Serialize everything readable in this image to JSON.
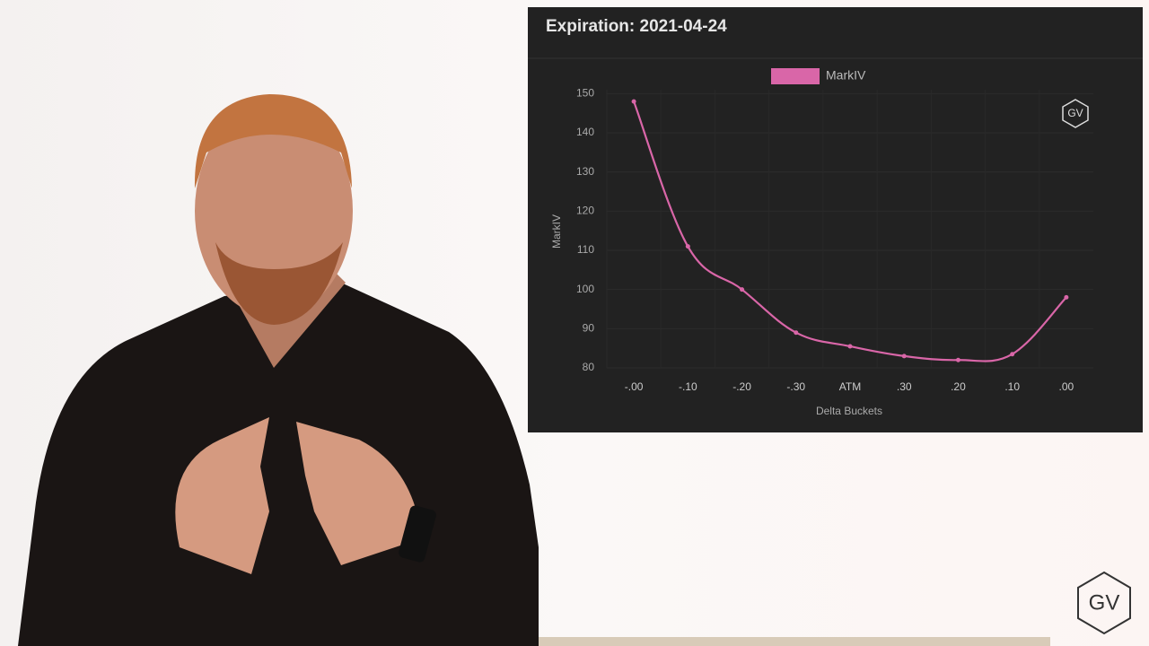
{
  "chart_data": {
    "type": "line",
    "title": "Expiration: 2021-04-24",
    "x_label": "Delta Buckets",
    "y_label": "MarkIV",
    "categories": [
      "-.00",
      "-.10",
      "-.20",
      "-.30",
      "ATM",
      ".30",
      ".20",
      ".10",
      ".00"
    ],
    "series": [
      {
        "name": "MarkIV",
        "color": "#d966a8",
        "values": [
          148,
          111,
          100,
          89,
          85.5,
          83,
          82,
          83.5,
          98
        ]
      }
    ],
    "ylim": [
      80,
      151
    ],
    "yticks": [
      80,
      90,
      100,
      110,
      120,
      130,
      140,
      150
    ],
    "grid": true,
    "legend": "top",
    "watermark": "GV"
  },
  "logo": "GV"
}
